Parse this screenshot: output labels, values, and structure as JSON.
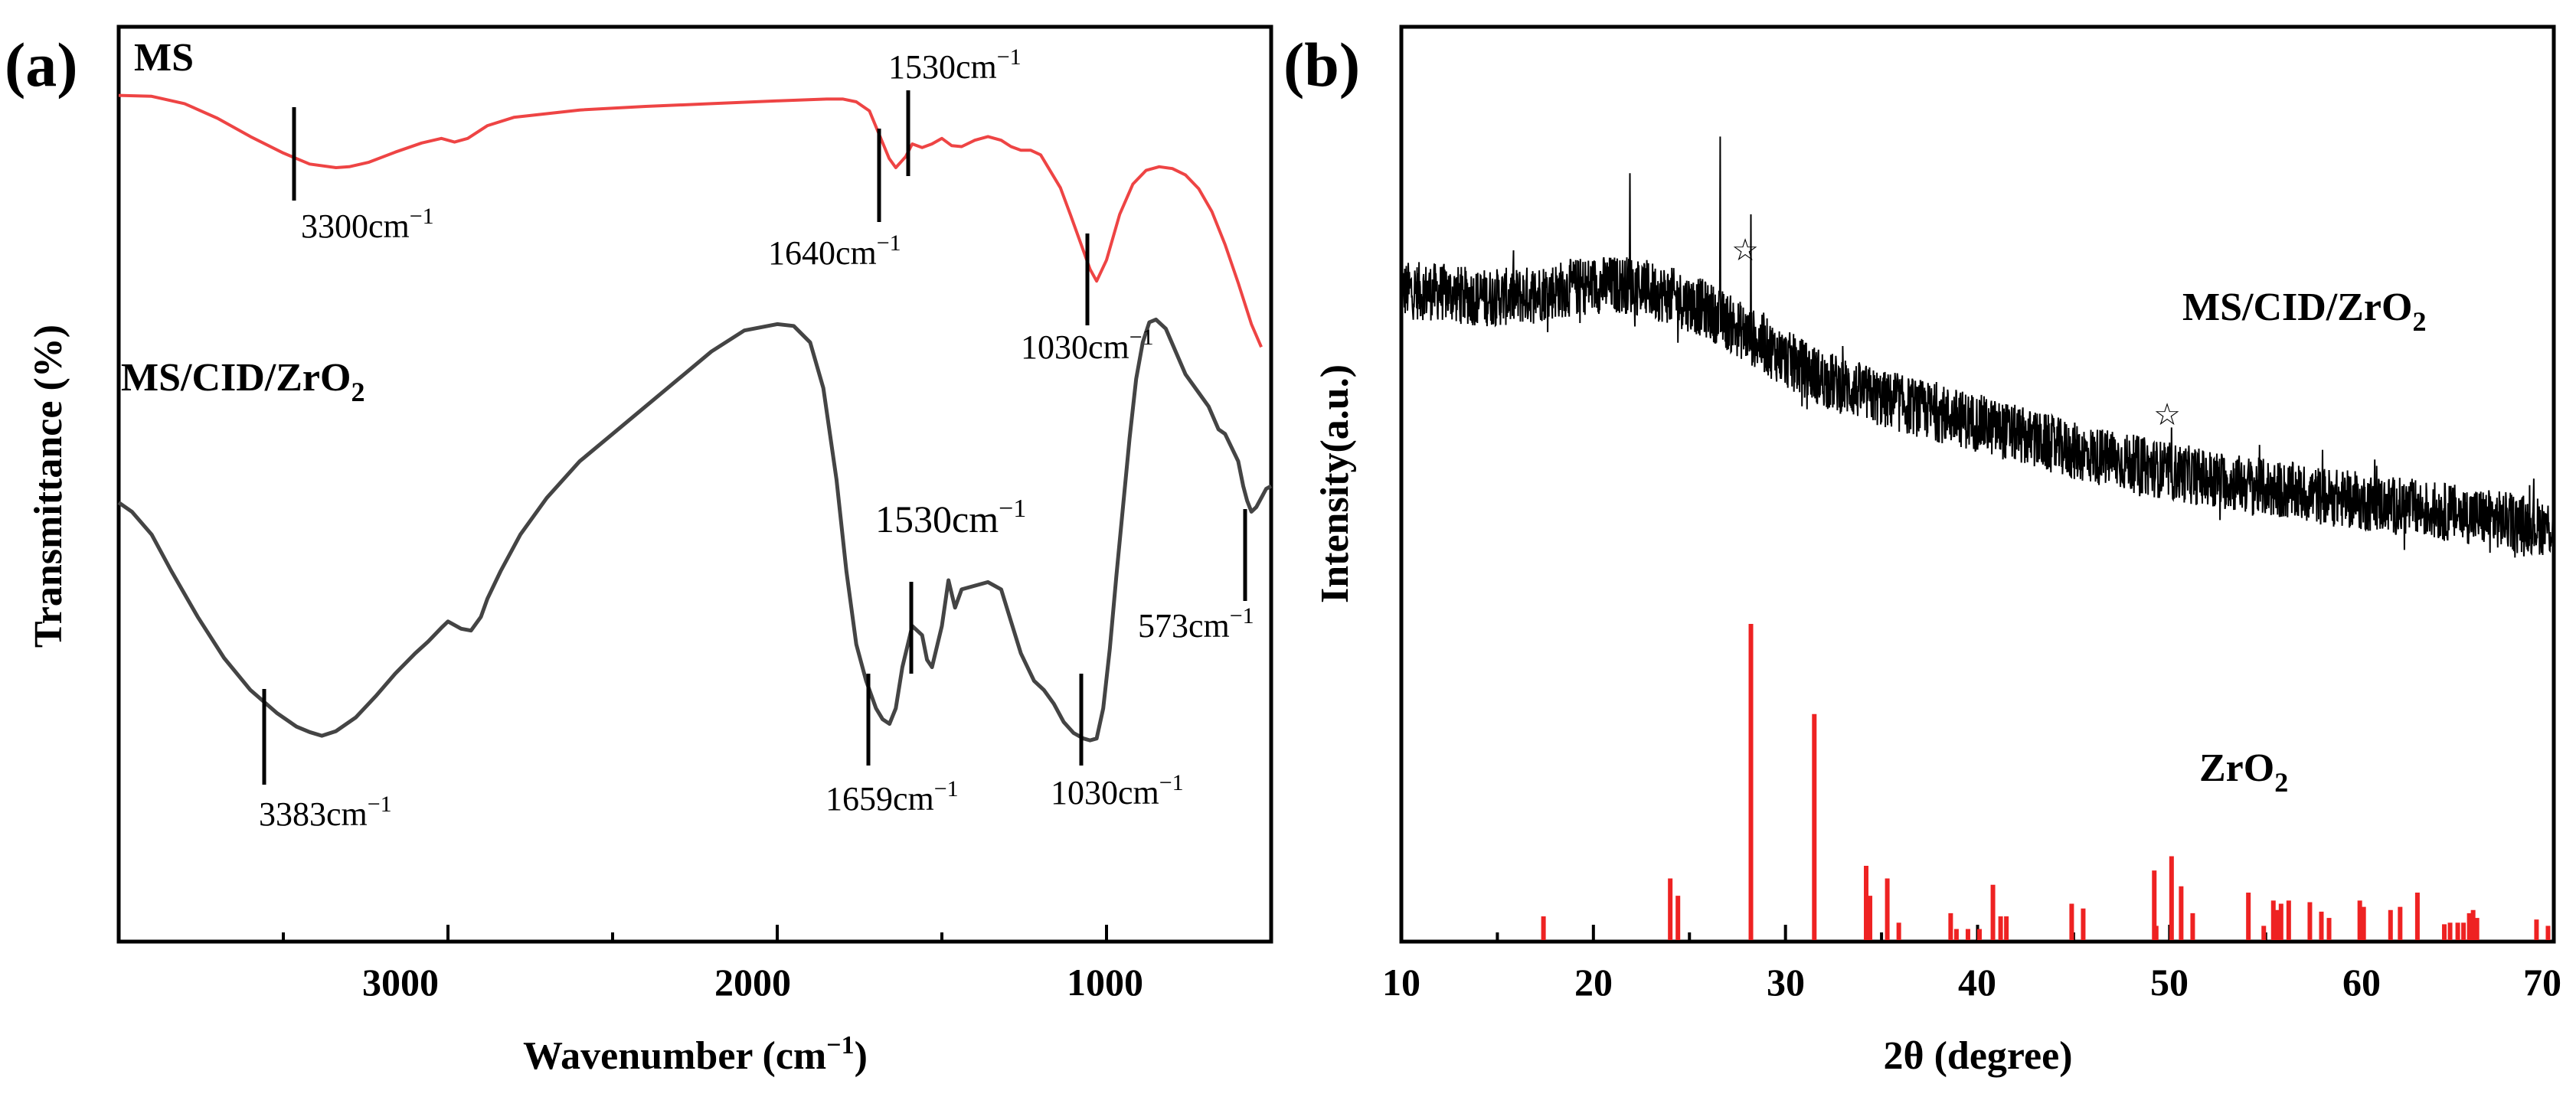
{
  "chart_data": [
    {
      "type": "line",
      "panel_label": "(a)",
      "xlabel": "Wavenumber (cm−1)",
      "ylabel": "Transmittance (%)",
      "xlim": [
        4000,
        500
      ],
      "x_reversed": true,
      "x_ticks": [
        3000,
        2000,
        1000
      ],
      "y_ticks_shown": false,
      "grid": false,
      "series": [
        {
          "name": "MS",
          "color": "#ee4444",
          "x": [
            4000,
            3900,
            3800,
            3700,
            3600,
            3500,
            3420,
            3340,
            3300,
            3240,
            3160,
            3080,
            3020,
            2980,
            2940,
            2880,
            2800,
            2600,
            2400,
            2200,
            2000,
            1850,
            1800,
            1760,
            1720,
            1690,
            1660,
            1640,
            1610,
            1590,
            1560,
            1530,
            1500,
            1470,
            1440,
            1400,
            1360,
            1320,
            1290,
            1260,
            1230,
            1200,
            1170,
            1140,
            1110,
            1080,
            1050,
            1030,
            1000,
            960,
            920,
            880,
            840,
            800,
            760,
            720,
            680,
            640,
            600,
            560,
            530
          ],
          "y": [
            92.5,
            92.4,
            91.6,
            90.0,
            88.0,
            86.2,
            85.0,
            84.6,
            84.7,
            85.2,
            86.3,
            87.3,
            87.8,
            87.4,
            87.8,
            89.2,
            90.1,
            90.9,
            91.3,
            91.6,
            91.9,
            92.1,
            92.1,
            91.8,
            90.8,
            88.2,
            85.6,
            84.6,
            85.8,
            87.2,
            86.8,
            87.2,
            87.8,
            87.0,
            86.9,
            87.6,
            88.0,
            87.6,
            86.9,
            86.5,
            86.5,
            86.0,
            84.2,
            82.4,
            79.5,
            76.5,
            73.5,
            72.2,
            74.5,
            79.5,
            82.8,
            84.3,
            84.7,
            84.5,
            83.8,
            82.3,
            79.8,
            76.2,
            72.0,
            67.5,
            65.0
          ]
        },
        {
          "name": "MS/CID/ZrO2",
          "color": "#444444",
          "x": [
            4000,
            3960,
            3900,
            3840,
            3760,
            3680,
            3600,
            3520,
            3460,
            3420,
            3383,
            3340,
            3280,
            3220,
            3160,
            3100,
            3060,
            3020,
            3000,
            2960,
            2930,
            2900,
            2880,
            2840,
            2780,
            2700,
            2600,
            2500,
            2400,
            2300,
            2200,
            2100,
            2000,
            1950,
            1900,
            1860,
            1820,
            1790,
            1760,
            1730,
            1700,
            1680,
            1659,
            1640,
            1620,
            1590,
            1560,
            1545,
            1530,
            1500,
            1480,
            1460,
            1440,
            1400,
            1360,
            1320,
            1290,
            1260,
            1220,
            1190,
            1160,
            1130,
            1100,
            1070,
            1050,
            1030,
            1010,
            990,
            970,
            950,
            930,
            910,
            890,
            870,
            850,
            820,
            790,
            760,
            720,
            690,
            660,
            640,
            620,
            600,
            585,
            573,
            560,
            545,
            530,
            515,
            500
          ],
          "y": [
            48.0,
            47.0,
            44.5,
            40.5,
            35.5,
            31.0,
            27.5,
            25.0,
            23.5,
            22.9,
            22.5,
            23.0,
            24.5,
            26.8,
            29.3,
            31.5,
            32.8,
            34.3,
            35.0,
            34.2,
            34.0,
            35.5,
            37.5,
            40.5,
            44.5,
            48.5,
            52.5,
            55.5,
            58.5,
            61.5,
            64.5,
            66.8,
            67.5,
            67.3,
            65.5,
            60.5,
            50.5,
            40.5,
            32.5,
            28.5,
            25.5,
            24.3,
            23.8,
            25.5,
            30.0,
            34.5,
            33.5,
            30.8,
            30.0,
            34.5,
            39.5,
            36.5,
            38.5,
            38.9,
            39.3,
            38.5,
            35.0,
            31.5,
            28.5,
            27.5,
            26.0,
            24.0,
            22.8,
            22.2,
            22.0,
            22.2,
            25.5,
            32.0,
            40.0,
            47.5,
            55.0,
            61.5,
            65.5,
            67.7,
            68.0,
            67.0,
            64.5,
            62.0,
            60.0,
            58.5,
            56.0,
            55.5,
            54.0,
            52.5,
            49.8,
            48.2,
            47.0,
            47.5,
            48.5,
            49.5,
            49.8
          ]
        }
      ],
      "annotations": [
        {
          "text": "3300 cm−1",
          "x": 3300
        },
        {
          "text": "1640 cm−1",
          "x": 1640
        },
        {
          "text": "1530 cm−1",
          "x": 1530
        },
        {
          "text": "1030 cm−1",
          "x": 1030
        },
        {
          "text": "3383 cm−1",
          "x": 3383
        },
        {
          "text": "1659 cm−1",
          "x": 1659
        },
        {
          "text": "1530 cm−1",
          "x": 1530
        },
        {
          "text": "1030 cm−1",
          "x": 1030
        },
        {
          "text": "573 cm−1",
          "x": 573
        }
      ]
    },
    {
      "type": "line",
      "panel_label": "(b)",
      "xlabel": "2θ (degree)",
      "ylabel": "Intensity(a.u.)",
      "xlim": [
        10,
        70
      ],
      "x_ticks": [
        10,
        20,
        30,
        40,
        50,
        60,
        70
      ],
      "y_ticks_shown": false,
      "grid": false,
      "series": [
        {
          "name": "MS/CID/ZrO2",
          "color": "#000000",
          "baseline": {
            "x": [
              10,
              12,
              14,
              16,
              18,
              20,
              22,
              24,
              26,
              28,
              30,
              32,
              35,
              40,
              45,
              50,
              55,
              60,
              65,
              70
            ],
            "y": [
              71.2,
              71.0,
              70.4,
              70.5,
              71.2,
              71.8,
              71.8,
              70.6,
              69.0,
              66.4,
              63.7,
              61.5,
              59.3,
              56.7,
              53.6,
              51.4,
              49.6,
              48.1,
              46.8,
              45.2
            ]
          },
          "noise_amplitude": 3.2,
          "peaks": [
            {
              "x": 21.9,
              "y": 84.0
            },
            {
              "x": 26.6,
              "y": 88.0
            },
            {
              "x": 28.2,
              "y": 79.5,
              "marker": "☆"
            },
            {
              "x": 50.1,
              "y": 56.2,
              "marker": "☆"
            },
            {
              "x": 59.9,
              "y": 49.5
            }
          ]
        },
        {
          "name": "ZrO2",
          "color": "#ee2222",
          "type": "stick",
          "x": [
            17.4,
            24.0,
            24.4,
            28.2,
            31.5,
            34.2,
            34.4,
            35.3,
            35.9,
            38.6,
            38.9,
            39.5,
            40.1,
            40.8,
            41.2,
            41.5,
            44.9,
            45.5,
            49.2,
            49.3,
            50.1,
            50.6,
            51.2,
            54.1,
            54.9,
            55.4,
            55.6,
            55.8,
            56.2,
            57.3,
            57.9,
            58.3,
            59.9,
            60.1,
            61.5,
            62.0,
            62.9,
            64.3,
            64.6,
            65.0,
            65.3,
            65.6,
            65.8,
            66.0,
            69.1,
            69.7
          ],
          "y": [
            7.5,
            19.5,
            14.0,
            100,
            71.5,
            23.5,
            14.0,
            19.5,
            5.5,
            8.5,
            3.5,
            3.5,
            3.5,
            17.5,
            7.5,
            7.5,
            11.5,
            10.0,
            22.0,
            4.5,
            26.5,
            17.0,
            8.5,
            15.0,
            4.5,
            12.5,
            9.5,
            11.5,
            12.5,
            12.0,
            9.0,
            7.0,
            12.5,
            10.5,
            9.5,
            10.5,
            15.0,
            5.0,
            5.5,
            5.5,
            5.5,
            8.5,
            9.5,
            7.0,
            6.5,
            4.5
          ]
        }
      ],
      "annotations": [
        {
          "text": "☆",
          "x": 28.2
        },
        {
          "text": "☆",
          "x": 50.1
        }
      ]
    }
  ],
  "labels": {
    "a": {
      "panel": "(a)",
      "xlabel": "Wavenumber (cm",
      "xlabel_sup": "−1",
      "xlabel_close": ")",
      "ylabel": "Transmittance (%)",
      "ticks": [
        "3000",
        "2000",
        "1000"
      ],
      "series_ms": "MS",
      "series_comp": "MS/CID/ZrO",
      "series_comp_sub": "2",
      "unit": "cm",
      "unit_sup": "−1",
      "ann_3300": "3300",
      "ann_1640": "1640",
      "ann_1530_top": "1530",
      "ann_1030_top": "1030",
      "ann_3383": "3383",
      "ann_1659": "1659",
      "ann_1530_bot": "1530",
      "ann_1030_bot": "1030",
      "ann_573": "573"
    },
    "b": {
      "panel": "(b)",
      "xlabel": "2θ (degree)",
      "ylabel": "Intensity(a.u.)",
      "ticks": [
        "10",
        "20",
        "30",
        "40",
        "50",
        "60",
        "70"
      ],
      "series_comp": "MS/CID/ZrO",
      "series_comp_sub": "2",
      "series_ref": "ZrO",
      "series_ref_sub": "2",
      "star": "☆"
    }
  },
  "colors": {
    "ms": "#ee4444",
    "composite_ir": "#444444",
    "xrd": "#000000",
    "reference": "#ee2222",
    "axis": "#000000"
  }
}
